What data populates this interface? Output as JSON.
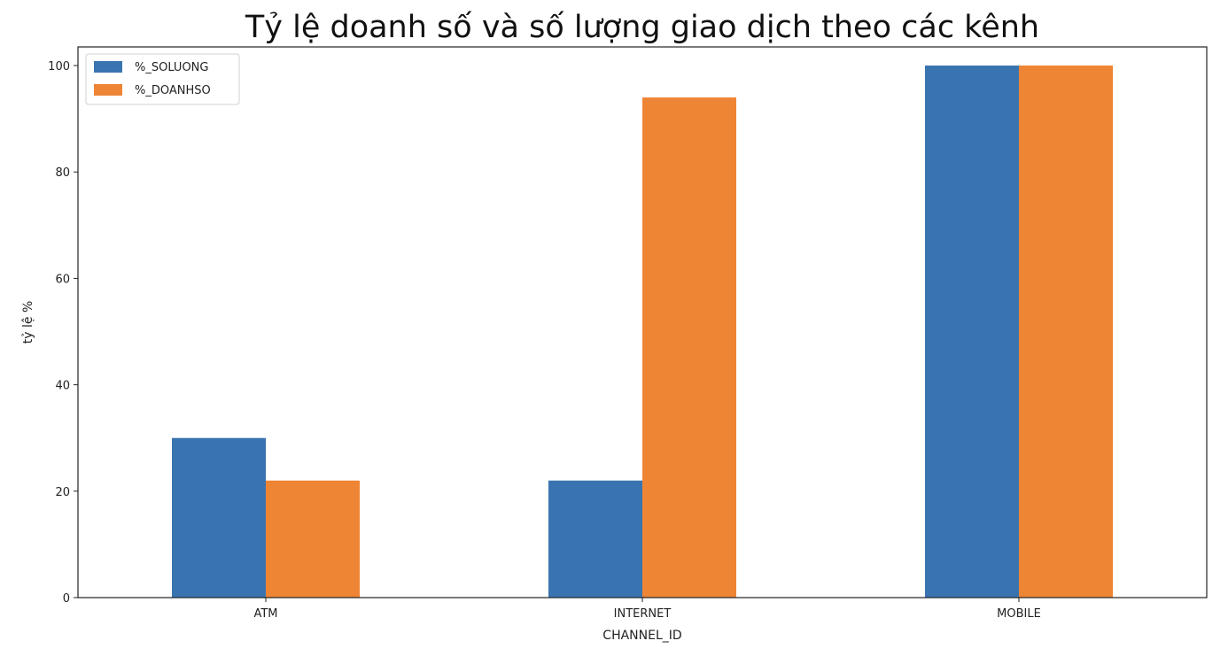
{
  "chart_data": {
    "type": "bar",
    "title": "Tỷ lệ doanh số và số lượng giao dịch theo các kênh",
    "xlabel": "CHANNEL_ID",
    "ylabel": "tỷ lệ %",
    "categories": [
      "ATM",
      "INTERNET",
      "MOBILE"
    ],
    "series": [
      {
        "name": "%_SOLUONG",
        "values": [
          30,
          22,
          100
        ],
        "color": "#3a74b0"
      },
      {
        "name": "%_DOANHSO",
        "values": [
          22,
          94,
          100
        ],
        "color": "#ee8535"
      }
    ],
    "ylim": [
      0,
      103.5
    ],
    "yticks": [
      0,
      20,
      40,
      60,
      80,
      100
    ],
    "grid": false,
    "legend": "top-left"
  }
}
